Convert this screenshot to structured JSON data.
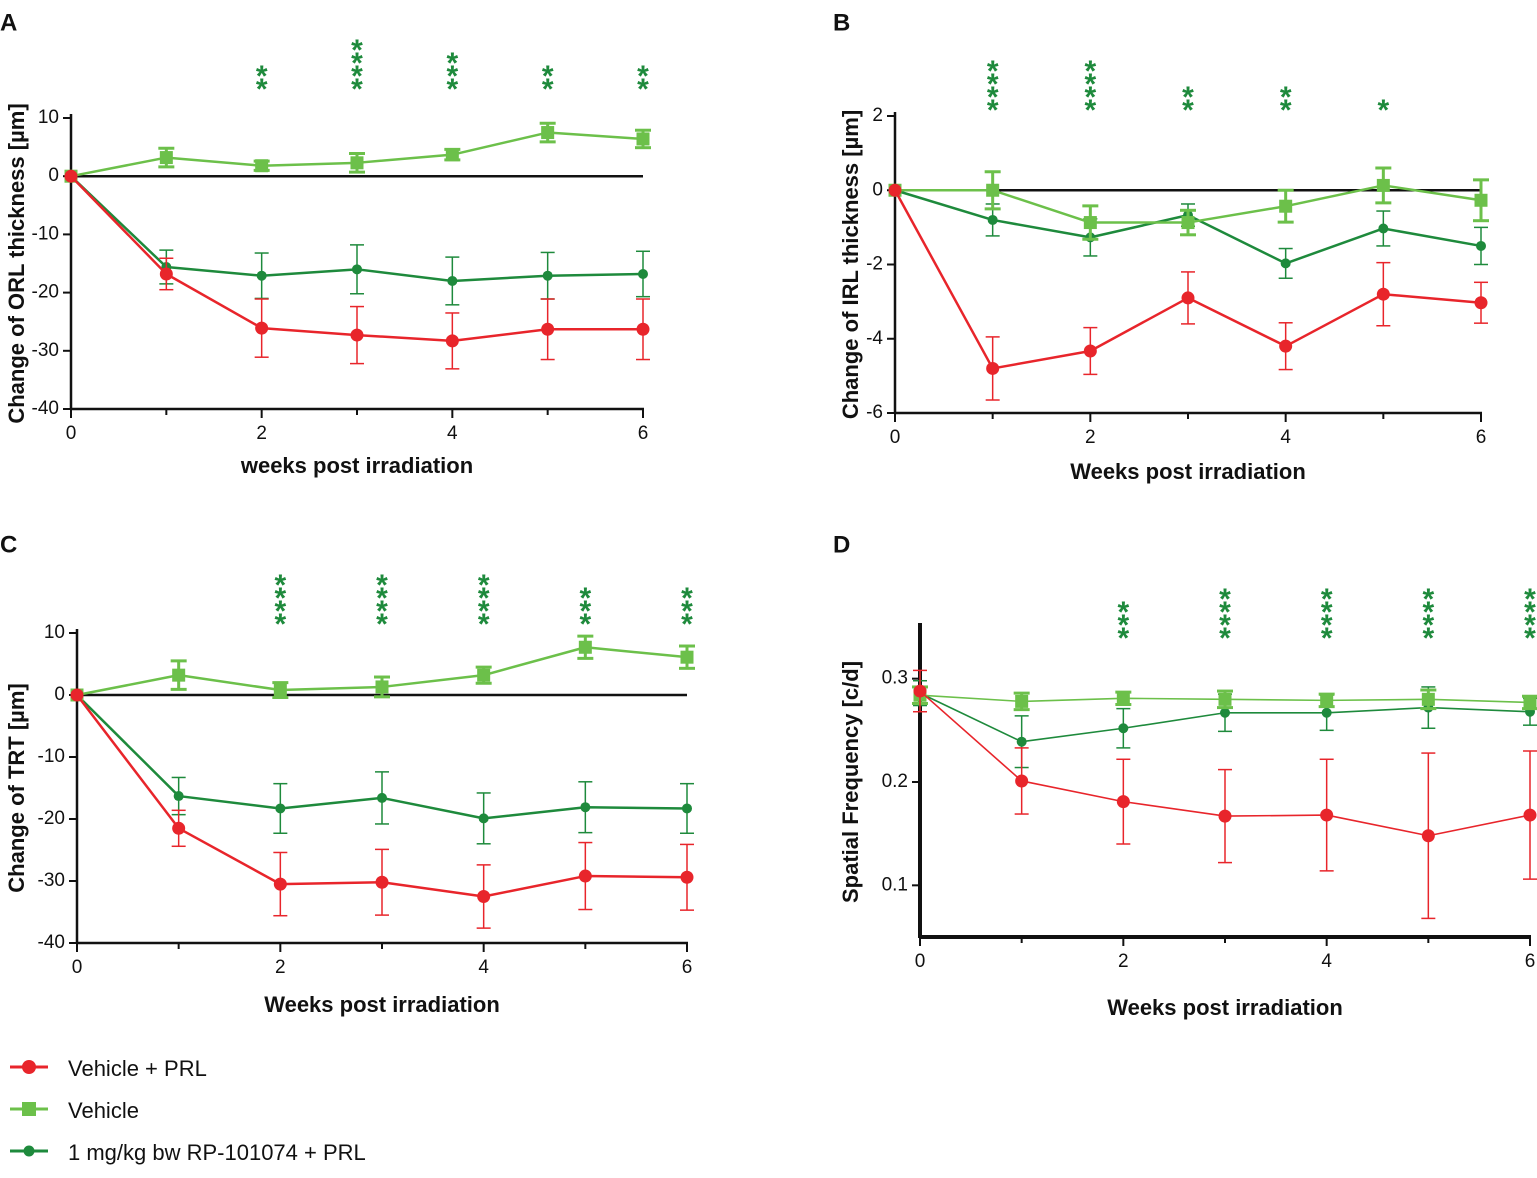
{
  "series_styles": [
    {
      "key": "prl",
      "name": "Vehicle + PRL",
      "color": "#e8252b",
      "marker": "circle"
    },
    {
      "key": "veh",
      "name": "Vehicle",
      "color": "#6cc04a",
      "marker": "square"
    },
    {
      "key": "rp",
      "name": "1 mg/kg bw RP-101074 + PRL",
      "color": "#1e8a3c",
      "marker": "circle"
    }
  ],
  "chart_data": [
    {
      "panel": "A",
      "type": "line",
      "xlabel": "weeks post irradiation",
      "ylabel": "Change of ORL thickness [µm]",
      "xlim": [
        0,
        6
      ],
      "ylim": [
        -40,
        10
      ],
      "xticks": [
        0,
        2,
        4,
        6
      ],
      "yticks": [
        10,
        0,
        -10,
        -20,
        -30,
        -40
      ],
      "x": [
        0,
        1,
        2,
        3,
        4,
        5,
        6
      ],
      "zero_line": true,
      "series": [
        {
          "key": "prl",
          "values": [
            0,
            -16.8,
            -26.1,
            -27.3,
            -28.3,
            -26.3,
            -26.3
          ],
          "errors": [
            0,
            2.7,
            5.0,
            4.9,
            4.8,
            5.2,
            5.2
          ]
        },
        {
          "key": "veh",
          "values": [
            0,
            3.2,
            1.8,
            2.3,
            3.7,
            7.5,
            6.4
          ],
          "errors": [
            0,
            1.6,
            0.8,
            1.6,
            0.9,
            1.6,
            1.5
          ]
        },
        {
          "key": "rp",
          "values": [
            0,
            -15.6,
            -17.1,
            -16.0,
            -18.0,
            -17.1,
            -16.8
          ],
          "errors": [
            0,
            2.9,
            3.9,
            4.2,
            4.1,
            4.0,
            3.9
          ]
        }
      ],
      "significance": [
        {
          "x": 2,
          "label": "**"
        },
        {
          "x": 3,
          "label": "****"
        },
        {
          "x": 4,
          "label": "***"
        },
        {
          "x": 5,
          "label": "**"
        },
        {
          "x": 6,
          "label": "**"
        }
      ]
    },
    {
      "panel": "B",
      "type": "line",
      "xlabel": "Weeks post irradiation",
      "ylabel": "Change of IRL thickness [µm]",
      "xlim": [
        0,
        6
      ],
      "ylim": [
        -6,
        2
      ],
      "xticks": [
        0,
        2,
        4,
        6
      ],
      "yticks": [
        2,
        0,
        -2,
        -4,
        -6
      ],
      "x": [
        0,
        1,
        2,
        3,
        4,
        5,
        6
      ],
      "zero_line": true,
      "series": [
        {
          "key": "prl",
          "values": [
            0,
            -4.8,
            -4.33,
            -2.9,
            -4.2,
            -2.8,
            -3.03
          ],
          "errors": [
            0,
            0.85,
            0.63,
            0.7,
            0.63,
            0.85,
            0.55
          ]
        },
        {
          "key": "veh",
          "values": [
            0,
            0.0,
            -0.87,
            -0.87,
            -0.43,
            0.13,
            -0.27
          ],
          "errors": [
            0,
            0.5,
            0.45,
            0.33,
            0.43,
            0.47,
            0.55
          ]
        },
        {
          "key": "rp",
          "values": [
            0,
            -0.8,
            -1.27,
            -0.67,
            -1.97,
            -1.03,
            -1.5
          ],
          "errors": [
            0,
            0.43,
            0.5,
            0.3,
            0.4,
            0.47,
            0.5
          ]
        }
      ],
      "significance": [
        {
          "x": 1,
          "label": "****"
        },
        {
          "x": 2,
          "label": "****"
        },
        {
          "x": 3,
          "label": "**"
        },
        {
          "x": 4,
          "label": "**"
        },
        {
          "x": 5,
          "label": "*"
        }
      ]
    },
    {
      "panel": "C",
      "type": "line",
      "xlabel": "Weeks post irradiation",
      "ylabel": "Change of TRT [µm]",
      "xlim": [
        0,
        6
      ],
      "ylim": [
        -40,
        10
      ],
      "xticks": [
        0,
        2,
        4,
        6
      ],
      "yticks": [
        10,
        0,
        -10,
        -20,
        -30,
        -40
      ],
      "x": [
        0,
        1,
        2,
        3,
        4,
        5,
        6
      ],
      "zero_line": true,
      "series": [
        {
          "key": "prl",
          "values": [
            0,
            -21.5,
            -30.5,
            -30.2,
            -32.5,
            -29.2,
            -29.4
          ],
          "errors": [
            0,
            2.9,
            5.1,
            5.3,
            5.1,
            5.4,
            5.3
          ]
        },
        {
          "key": "veh",
          "values": [
            0,
            3.2,
            0.8,
            1.3,
            3.2,
            7.7,
            6.1
          ],
          "errors": [
            0,
            2.3,
            1.2,
            1.6,
            1.3,
            1.8,
            1.8
          ]
        },
        {
          "key": "rp",
          "values": [
            0,
            -16.3,
            -18.3,
            -16.6,
            -19.9,
            -18.1,
            -18.3
          ],
          "errors": [
            0,
            3.0,
            4.0,
            4.2,
            4.1,
            4.1,
            4.0
          ]
        }
      ],
      "significance": [
        {
          "x": 2,
          "label": "****"
        },
        {
          "x": 3,
          "label": "****"
        },
        {
          "x": 4,
          "label": "****"
        },
        {
          "x": 5,
          "label": "***"
        },
        {
          "x": 6,
          "label": "***"
        }
      ]
    },
    {
      "panel": "D",
      "type": "line",
      "xlabel": "Weeks post irradiation",
      "ylabel": "Spatial Frequency [c/d]",
      "xlim": [
        0,
        6
      ],
      "ylim": [
        0.05,
        0.35
      ],
      "xticks": [
        0,
        2,
        4,
        6
      ],
      "yticks": [
        0.3,
        0.2,
        0.1
      ],
      "ytick_labels": [
        "0.3",
        "0.2",
        "0.1"
      ],
      "x": [
        0,
        1,
        2,
        3,
        4,
        5,
        6
      ],
      "zero_line": false,
      "series": [
        {
          "key": "prl",
          "values": [
            0.288,
            0.201,
            0.181,
            0.167,
            0.168,
            0.148,
            0.168
          ],
          "errors": [
            0.02,
            0.032,
            0.041,
            0.045,
            0.054,
            0.08,
            0.062
          ]
        },
        {
          "key": "veh",
          "values": [
            0.284,
            0.278,
            0.281,
            0.28,
            0.279,
            0.28,
            0.277
          ],
          "errors": [
            0.008,
            0.008,
            0.006,
            0.008,
            0.006,
            0.009,
            0.006
          ]
        },
        {
          "key": "rp",
          "values": [
            0.286,
            0.239,
            0.252,
            0.267,
            0.267,
            0.272,
            0.268
          ],
          "errors": [
            0.012,
            0.025,
            0.019,
            0.018,
            0.017,
            0.02,
            0.013
          ]
        }
      ],
      "significance": [
        {
          "x": 2,
          "label": "***"
        },
        {
          "x": 3,
          "label": "****"
        },
        {
          "x": 4,
          "label": "****"
        },
        {
          "x": 5,
          "label": "****"
        },
        {
          "x": 6,
          "label": "****"
        }
      ]
    }
  ]
}
